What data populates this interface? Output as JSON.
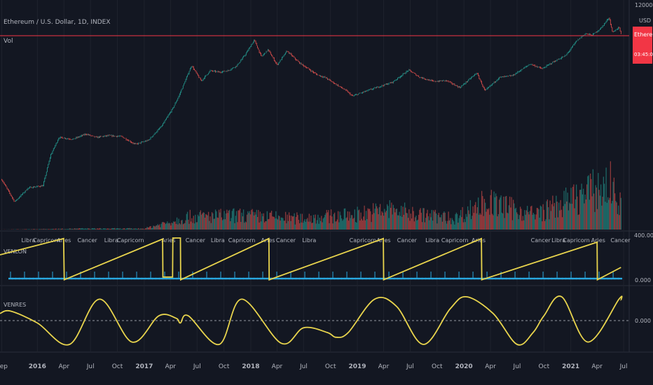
{
  "header": {
    "symbol_title": "Ethereum / U.S. Dollar, 1D, INDEX",
    "volume_label": "Vol"
  },
  "price_axis": {
    "scale_label": "12000.00",
    "currency": "USD",
    "last_price_badge": "Ethereum",
    "last_price_sub": "03:45:06",
    "badge_color": "#f23645"
  },
  "indicators": {
    "venlon": {
      "label": "VENLON",
      "right_top": "400.000",
      "right_bottom": "0.000",
      "zodiac_labels": [
        {
          "text": "Libra",
          "x": "2015-12-01"
        },
        {
          "text": "Capricorn",
          "x": "2016-02-01"
        },
        {
          "text": "Aries",
          "x": "2016-04-01"
        },
        {
          "text": "Cancer",
          "x": "2016-06-20"
        },
        {
          "text": "Libra",
          "x": "2016-09-10"
        },
        {
          "text": "Capricorn",
          "x": "2016-11-15"
        },
        {
          "text": "Aries",
          "x": "2017-03-25"
        },
        {
          "text": "Cancer",
          "x": "2017-06-25"
        },
        {
          "text": "Libra",
          "x": "2017-09-10"
        },
        {
          "text": "Capricorn",
          "x": "2017-12-01"
        },
        {
          "text": "Aries",
          "x": "2018-03-01"
        },
        {
          "text": "Cancer",
          "x": "2018-05-01"
        },
        {
          "text": "Libra",
          "x": "2018-07-20"
        },
        {
          "text": "Capricorn",
          "x": "2019-01-20"
        },
        {
          "text": "Aries",
          "x": "2019-04-01"
        },
        {
          "text": "Cancer",
          "x": "2019-06-20"
        },
        {
          "text": "Libra",
          "x": "2019-09-15"
        },
        {
          "text": "Capricorn",
          "x": "2019-12-01"
        },
        {
          "text": "Aries",
          "x": "2020-02-20"
        },
        {
          "text": "Cancer",
          "x": "2020-09-20"
        },
        {
          "text": "Libra",
          "x": "2020-11-20"
        },
        {
          "text": "Capricorn",
          "x": "2021-01-20"
        },
        {
          "text": "Aries",
          "x": "2021-04-05"
        },
        {
          "text": "Cancer",
          "x": "2021-06-20"
        }
      ]
    },
    "venres": {
      "label": "VENRES",
      "right_value": "0.000"
    }
  },
  "chart_data": {
    "type": "line",
    "time_axis": {
      "range": [
        "2015-08-26",
        "2021-07-20"
      ],
      "tick_labels": [
        {
          "text": "Sep",
          "x": "2015-09-01"
        },
        {
          "text": "2016",
          "x": "2016-01-01"
        },
        {
          "text": "Apr",
          "x": "2016-04-01"
        },
        {
          "text": "Jul",
          "x": "2016-07-01"
        },
        {
          "text": "Oct",
          "x": "2016-10-01"
        },
        {
          "text": "2017",
          "x": "2017-01-01"
        },
        {
          "text": "Apr",
          "x": "2017-04-01"
        },
        {
          "text": "Jul",
          "x": "2017-07-01"
        },
        {
          "text": "Oct",
          "x": "2017-10-01"
        },
        {
          "text": "2018",
          "x": "2018-01-01"
        },
        {
          "text": "Apr",
          "x": "2018-04-01"
        },
        {
          "text": "Jul",
          "x": "2018-07-01"
        },
        {
          "text": "Oct",
          "x": "2018-10-01"
        },
        {
          "text": "2019",
          "x": "2019-01-01"
        },
        {
          "text": "Apr",
          "x": "2019-04-01"
        },
        {
          "text": "Jul",
          "x": "2019-07-01"
        },
        {
          "text": "Oct",
          "x": "2019-10-01"
        },
        {
          "text": "2020",
          "x": "2020-01-01"
        },
        {
          "text": "Apr",
          "x": "2020-04-01"
        },
        {
          "text": "Jul",
          "x": "2020-07-01"
        },
        {
          "text": "Oct",
          "x": "2020-10-01"
        },
        {
          "text": "2021",
          "x": "2021-01-01"
        },
        {
          "text": "Apr",
          "x": "2021-04-01"
        },
        {
          "text": "Jul",
          "x": "2021-07-01"
        }
      ]
    },
    "price": {
      "scale": "log",
      "color_up": "#26a69a",
      "color_down": "#ef5350",
      "x": [
        "2015-09-01",
        "2015-10-15",
        "2015-12-01",
        "2016-01-20",
        "2016-02-15",
        "2016-03-15",
        "2016-05-01",
        "2016-06-15",
        "2016-07-20",
        "2016-09-01",
        "2016-10-15",
        "2016-12-01",
        "2017-01-15",
        "2017-03-01",
        "2017-04-10",
        "2017-05-01",
        "2017-06-12",
        "2017-07-15",
        "2017-08-15",
        "2017-09-15",
        "2017-10-15",
        "2017-11-15",
        "2017-12-15",
        "2018-01-13",
        "2018-02-06",
        "2018-03-01",
        "2018-04-01",
        "2018-05-05",
        "2018-06-15",
        "2018-08-14",
        "2018-09-15",
        "2018-11-25",
        "2018-12-15",
        "2019-02-01",
        "2019-03-15",
        "2019-05-01",
        "2019-06-26",
        "2019-08-01",
        "2019-09-20",
        "2019-11-01",
        "2019-12-18",
        "2020-02-14",
        "2020-03-13",
        "2020-05-01",
        "2020-06-15",
        "2020-08-15",
        "2020-09-25",
        "2020-11-01",
        "2020-12-15",
        "2021-01-20",
        "2021-02-20",
        "2021-03-15",
        "2021-04-15",
        "2021-05-12",
        "2021-05-24",
        "2021-06-15",
        "2021-06-22"
      ],
      "y": [
        1.35,
        0.45,
        0.9,
        1.0,
        4.5,
        11,
        10,
        13,
        11,
        12,
        11.5,
        7.8,
        9.5,
        19,
        48,
        90,
        390,
        180,
        300,
        280,
        300,
        390,
        700,
        1380,
        600,
        850,
        400,
        800,
        450,
        250,
        210,
        110,
        85,
        110,
        135,
        170,
        310,
        220,
        175,
        185,
        130,
        270,
        110,
        215,
        235,
        420,
        330,
        460,
        640,
        1300,
        1900,
        1750,
        2500,
        4200,
        2000,
        2600,
        1850
      ]
    },
    "volume": {
      "x": [
        "2015-09-01",
        "2016-06-01",
        "2017-01-01",
        "2017-06-01",
        "2017-12-01",
        "2018-02-01",
        "2018-06-01",
        "2018-12-01",
        "2019-05-01",
        "2019-07-01",
        "2019-12-01",
        "2020-03-12",
        "2020-09-01",
        "2021-01-10",
        "2021-02-20",
        "2021-05-19",
        "2021-06-22"
      ],
      "y": [
        0.1,
        2,
        2,
        25,
        28,
        26,
        22,
        28,
        40,
        32,
        22,
        55,
        30,
        60,
        72,
        88,
        45
      ]
    },
    "venlon": {
      "ylim": [
        0,
        400
      ],
      "x": [
        "2015-08-26",
        "2016-03-31",
        "2016-04-02",
        "2017-03-05",
        "2017-03-06",
        "2017-04-08",
        "2017-04-09",
        "2017-05-05",
        "2017-05-06",
        "2018-03-04",
        "2018-03-05",
        "2019-03-31",
        "2019-04-01",
        "2020-03-01",
        "2020-03-02",
        "2021-04-01",
        "2021-04-02",
        "2021-06-22"
      ],
      "y": [
        240,
        395,
        2,
        390,
        28,
        28,
        400,
        400,
        2,
        395,
        2,
        395,
        2,
        395,
        2,
        360,
        2,
        120
      ]
    },
    "venres": {
      "x": [
        "2015-08-26",
        "2015-10-01",
        "2016-01-01",
        "2016-04-20",
        "2016-08-01",
        "2016-11-20",
        "2017-02-20",
        "2017-04-20",
        "2017-05-05",
        "2017-06-01",
        "2017-09-15",
        "2017-12-01",
        "2018-04-15",
        "2018-07-01",
        "2018-09-20",
        "2018-10-20",
        "2018-12-01",
        "2019-03-01",
        "2019-05-15",
        "2019-08-15",
        "2019-11-15",
        "2020-01-10",
        "2020-04-10",
        "2020-07-01",
        "2020-08-25",
        "2020-10-01",
        "2020-12-01",
        "2021-03-01",
        "2021-06-15",
        "2021-06-22"
      ],
      "y": [
        0.3,
        0.4,
        -0.1,
        -1,
        0.9,
        -0.9,
        0.2,
        0.1,
        -0.1,
        0.2,
        -1,
        0.9,
        -0.95,
        -0.3,
        -0.5,
        -0.7,
        -0.5,
        0.9,
        0.6,
        -1,
        0.5,
        1.0,
        0.3,
        -1,
        -0.5,
        0.2,
        1.0,
        -0.9,
        0.9,
        0.85
      ]
    }
  }
}
